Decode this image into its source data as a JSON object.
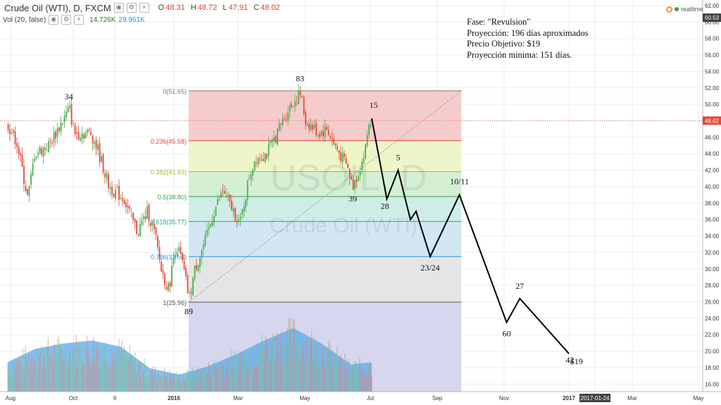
{
  "header": {
    "title": "Crude Oil (WTI), D, FXCM",
    "ohlc": [
      {
        "key": "O",
        "value": "48.31"
      },
      {
        "key": "H",
        "value": "48.72"
      },
      {
        "key": "L",
        "value": "47.91"
      },
      {
        "key": "C",
        "value": "48.02"
      }
    ],
    "volume_label": "Vol (20, false)",
    "volume_value_1": "14.726K",
    "volume_value_2": "29.961K",
    "realtime_label": "realtime"
  },
  "annotation_lines": [
    "Fase: \"Revulsion\"",
    "Proyección: 196 días aproximados",
    "Precio Objetivo: $19",
    "Proyección minima: 151 días."
  ],
  "watermark": {
    "symbol": "USOIL, D",
    "name": "Crude Oil (WTI)"
  },
  "colors": {
    "up": "#4caf50",
    "down": "#e04b3a",
    "fib_line": "#808080"
  },
  "chart_data": {
    "type": "candlestick",
    "title": "Crude Oil (WTI), D, FXCM",
    "y_axis": {
      "range": [
        15.0,
        62.3
      ],
      "ticks": [
        "62.00",
        "60.00",
        "58.00",
        "56.00",
        "54.00",
        "52.00",
        "50.00",
        "48.00",
        "46.00",
        "44.00",
        "42.00",
        "40.00",
        "38.00",
        "36.00",
        "34.00",
        "32.00",
        "30.00",
        "28.00",
        "26.00",
        "24.00",
        "22.00",
        "20.00",
        "18.00",
        "16.00"
      ],
      "price_labels": [
        {
          "value": "60.53",
          "kind": "high"
        },
        {
          "value": "48.02",
          "kind": "last"
        }
      ]
    },
    "x_axis": {
      "ticks": [
        "Aug",
        "Oct",
        "9",
        "2016",
        "Mar",
        "May",
        "Jul",
        "Sep",
        "Nov",
        "2017",
        "2017-01-24",
        "Mar",
        "May"
      ]
    },
    "price_path": [
      [
        "2015-08-03",
        47.5
      ],
      [
        "2015-08-12",
        45.5
      ],
      [
        "2015-08-24",
        38.5
      ],
      [
        "2015-08-31",
        44
      ],
      [
        "2015-09-15",
        45
      ],
      [
        "2015-10-07",
        49.5
      ],
      [
        "2015-10-12",
        46.5
      ],
      [
        "2015-10-30",
        46.5
      ],
      [
        "2015-11-06",
        44.5
      ],
      [
        "2015-11-18",
        40
      ],
      [
        "2015-12-04",
        38.5
      ],
      [
        "2015-12-09",
        37
      ],
      [
        "2015-12-18",
        34.5
      ],
      [
        "2015-12-29",
        37
      ],
      [
        "2016-01-06",
        34
      ],
      [
        "2016-01-12",
        30
      ],
      [
        "2016-01-20",
        27.5
      ],
      [
        "2016-01-28",
        33
      ],
      [
        "2016-02-03",
        31
      ],
      [
        "2016-02-11",
        26.3
      ],
      [
        "2016-02-17",
        30
      ],
      [
        "2016-03-01",
        34
      ],
      [
        "2016-03-08",
        37
      ],
      [
        "2016-03-18",
        39.5
      ],
      [
        "2016-03-24",
        38
      ],
      [
        "2016-04-05",
        35.5
      ],
      [
        "2016-04-14",
        41
      ],
      [
        "2016-04-21",
        43.5
      ],
      [
        "2016-05-03",
        44
      ],
      [
        "2016-05-12",
        46
      ],
      [
        "2016-05-26",
        49.5
      ],
      [
        "2016-06-08",
        51.3
      ],
      [
        "2016-06-13",
        48
      ],
      [
        "2016-06-27",
        46.5
      ],
      [
        "2016-07-06",
        47
      ],
      [
        "2016-07-14",
        45
      ],
      [
        "2016-07-27",
        42.5
      ],
      [
        "2016-08-02",
        40
      ],
      [
        "2016-08-08",
        41.7
      ],
      [
        "2016-08-15",
        44
      ],
      [
        "2016-08-19",
        47.5
      ],
      [
        "2016-08-23",
        48.3
      ]
    ],
    "volume_profile": [
      [
        "2015-08-03",
        0.38
      ],
      [
        "2015-09-01",
        0.55
      ],
      [
        "2015-10-01",
        0.62
      ],
      [
        "2015-11-01",
        0.66
      ],
      [
        "2015-12-01",
        0.58
      ],
      [
        "2016-01-01",
        0.3
      ],
      [
        "2016-02-01",
        0.22
      ],
      [
        "2016-03-01",
        0.32
      ],
      [
        "2016-04-01",
        0.48
      ],
      [
        "2016-05-01",
        0.66
      ],
      [
        "2016-06-01",
        0.82
      ],
      [
        "2016-07-01",
        0.62
      ],
      [
        "2016-08-01",
        0.35
      ],
      [
        "2016-08-23",
        0.38
      ]
    ],
    "fibonacci_levels": [
      {
        "ratio": "0",
        "price": 51.65,
        "label": "0(51.65)",
        "color": "#7a7a7a",
        "band": "#f5cccc"
      },
      {
        "ratio": "0.236",
        "price": 45.58,
        "label": "0.236(45.58)",
        "color": "#e0443a",
        "band": "#edf5c9"
      },
      {
        "ratio": "0.382",
        "price": 41.83,
        "label": "0.382(41.83)",
        "color": "#9bbf2e",
        "band": "#d4efd4"
      },
      {
        "ratio": "0.5",
        "price": 38.8,
        "label": "0.5(38.80)",
        "color": "#3aa14b",
        "band": "#cfede6"
      },
      {
        "ratio": "0.618",
        "price": 35.77,
        "label": "0.618(35.77)",
        "color": "#26a69a",
        "band": "#d3e6f3"
      },
      {
        "ratio": "0.786",
        "price": 31.5,
        "label": "0.786(31.50)",
        "color": "#2196f3",
        "band": "#e5e5e5"
      },
      {
        "ratio": "1",
        "price": 25.96,
        "label": "1(25.96)",
        "color": "#555555",
        "band": "#d6d6ee"
      }
    ],
    "fib_range": [
      "2016-02-11",
      "2016-11-26"
    ],
    "trend_line": [
      [
        "2016-02-11",
        25.96
      ],
      [
        "2016-11-26",
        51.65
      ]
    ],
    "projection_path": [
      [
        "2016-08-23",
        48.3
      ],
      [
        "2016-09-08",
        38.5
      ],
      [
        "2016-09-20",
        42
      ],
      [
        "2016-10-03",
        36
      ],
      [
        "2016-10-09",
        37
      ],
      [
        "2016-10-24",
        31.5
      ],
      [
        "2016-11-24",
        39
      ],
      [
        "2017-01-13",
        23.5
      ],
      [
        "2017-01-27",
        26.4
      ],
      [
        "2017-03-20",
        19.7
      ]
    ],
    "wave_labels": [
      {
        "text": "34",
        "date": "2015-10-07",
        "price": 50.6
      },
      {
        "text": "83",
        "date": "2016-06-08",
        "price": 52.8
      },
      {
        "text": "15",
        "date": "2016-08-25",
        "price": 49.6
      },
      {
        "text": "5",
        "date": "2016-09-20",
        "price": 43.2
      },
      {
        "text": "39",
        "date": "2016-08-03",
        "price": 38.2
      },
      {
        "text": "28",
        "date": "2016-09-06",
        "price": 37.3
      },
      {
        "text": "10/11",
        "date": "2016-11-24",
        "price": 40.3
      },
      {
        "text": "23/24",
        "date": "2016-10-24",
        "price": 29.8
      },
      {
        "text": "89",
        "date": "2016-02-11",
        "price": 24.5
      },
      {
        "text": "27",
        "date": "2017-01-27",
        "price": 27.6
      },
      {
        "text": "60",
        "date": "2017-01-13",
        "price": 21.8
      },
      {
        "text": "42",
        "date": "2017-03-21",
        "price": 18.6
      },
      {
        "text": "$19",
        "date": "2017-03-28",
        "price": 18.4
      }
    ]
  }
}
